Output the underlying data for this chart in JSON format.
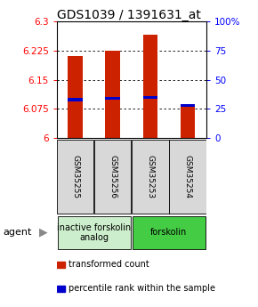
{
  "title": "GDS1039 / 1391631_at",
  "samples": [
    "GSM35255",
    "GSM35256",
    "GSM35253",
    "GSM35254"
  ],
  "transformed_counts": [
    6.21,
    6.225,
    6.265,
    6.085
  ],
  "percentile_ranks": [
    33,
    34,
    35,
    28
  ],
  "y_min": 6.0,
  "y_max": 6.3,
  "y_ticks": [
    6.0,
    6.075,
    6.15,
    6.225,
    6.3
  ],
  "y_tick_labels": [
    "6",
    "6.075",
    "6.15",
    "6.225",
    "6.3"
  ],
  "right_y_ticks": [
    0,
    25,
    50,
    75,
    100
  ],
  "right_y_labels": [
    "0",
    "25",
    "50",
    "75",
    "100%"
  ],
  "bar_color": "#cc2200",
  "percentile_color": "#0000cc",
  "groups": [
    {
      "label": "inactive forskolin\nanalog",
      "color": "#cceecc",
      "samples": [
        0,
        1
      ]
    },
    {
      "label": "forskolin",
      "color": "#44cc44",
      "samples": [
        2,
        3
      ]
    }
  ],
  "agent_label": "agent",
  "legend_items": [
    {
      "label": "transformed count",
      "color": "#cc2200"
    },
    {
      "label": "percentile rank within the sample",
      "color": "#0000cc"
    }
  ],
  "title_fontsize": 10,
  "tick_fontsize": 7.5,
  "sample_fontsize": 6.5,
  "group_fontsize": 7,
  "legend_fontsize": 7,
  "agent_fontsize": 8
}
